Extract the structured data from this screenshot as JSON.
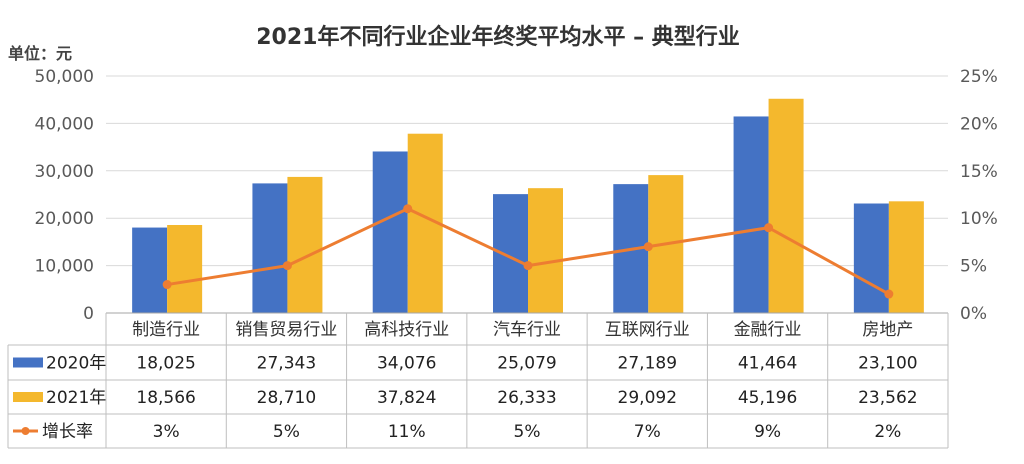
{
  "chart_data": {
    "type": "bar",
    "title": "2021年不同行业企业年终奖平均水平  – 典型行业",
    "unit_label": "单位：元",
    "categories": [
      "制造行业",
      "销售贸易行业",
      "高科技行业",
      "汽车行业",
      "互联网行业",
      "金融行业",
      "房地产"
    ],
    "series": [
      {
        "name": "2020年",
        "type": "bar",
        "color": "#4472C4",
        "values": [
          18025,
          27343,
          34076,
          25079,
          27189,
          41464,
          23100
        ],
        "labels": [
          "18,025",
          "27,343",
          "34,076",
          "25,079",
          "27,189",
          "41,464",
          "23,100"
        ]
      },
      {
        "name": "2021年",
        "type": "bar",
        "color": "#F4B82D",
        "values": [
          18566,
          28710,
          37824,
          26333,
          29092,
          45196,
          23562
        ],
        "labels": [
          "18,566",
          "28,710",
          "37,824",
          "26,333",
          "29,092",
          "45,196",
          "23,562"
        ]
      },
      {
        "name": "增长率",
        "type": "line",
        "axis": "right",
        "color": "#ED7D31",
        "values": [
          3,
          5,
          11,
          5,
          7,
          9,
          2
        ],
        "labels": [
          "3%",
          "5%",
          "11%",
          "5%",
          "7%",
          "9%",
          "2%"
        ]
      }
    ],
    "y_left": {
      "min": 0,
      "max": 50000,
      "step": 10000,
      "tick_labels": [
        "0",
        "10,000",
        "20,000",
        "30,000",
        "40,000",
        "50,000"
      ]
    },
    "y_right": {
      "min": 0,
      "max": 25,
      "step": 5,
      "tick_labels": [
        "0%",
        "5%",
        "10%",
        "15%",
        "20%",
        "25%"
      ]
    },
    "grid": true,
    "data_table": true
  }
}
